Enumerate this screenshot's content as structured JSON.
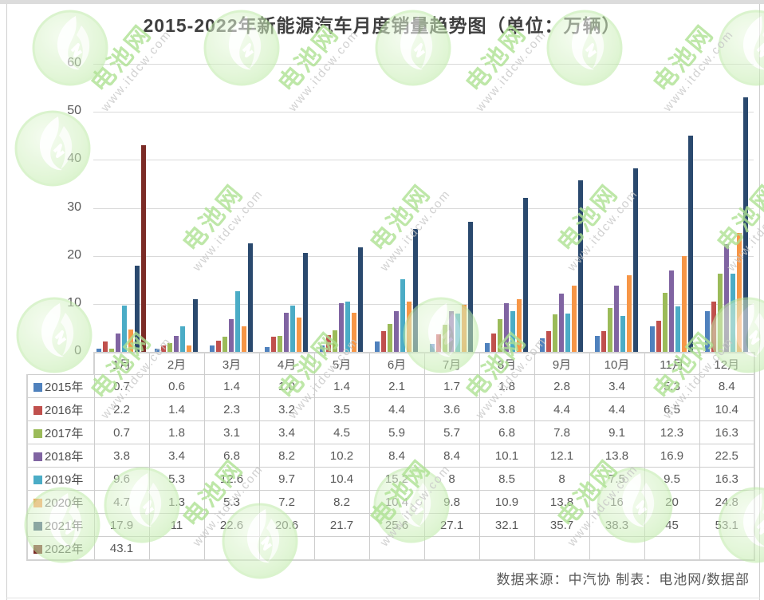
{
  "title": "2015-2022年新能源汽车月度销量趋势图（单位：万辆）",
  "footer_credit": "数据来源：中汽协 制表：电池网/数据部",
  "watermark": {
    "brand": "电池网",
    "url": "www.itdcw.com",
    "logo_icon": "green-swirl-circle-icon"
  },
  "chart_data": {
    "type": "bar",
    "title": "2015-2022年新能源汽车月度销量趋势图（单位：万辆）",
    "unit": "万辆",
    "categories": [
      "1月",
      "2月",
      "3月",
      "4月",
      "5月",
      "6月",
      "7月",
      "8月",
      "9月",
      "10月",
      "11月",
      "12月"
    ],
    "ylim": [
      0,
      60
    ],
    "yticks": [
      0,
      10,
      20,
      30,
      40,
      50,
      60
    ],
    "grid": true,
    "legend_position": "table-left-column",
    "series": [
      {
        "name": "2015年",
        "color": "#4F81BD",
        "values": [
          0.7,
          0.6,
          1.4,
          1.0,
          1.4,
          2.1,
          1.7,
          1.8,
          2.8,
          3.4,
          5.3,
          8.4
        ],
        "table": [
          "0.7",
          "0.6",
          "1.4",
          "1.0",
          "1.4",
          "2.1",
          "1.7",
          "1.8",
          "2.8",
          "3.4",
          "5.3",
          "8.4"
        ]
      },
      {
        "name": "2016年",
        "color": "#C0504D",
        "values": [
          2.2,
          1.4,
          2.3,
          3.2,
          3.5,
          4.4,
          3.6,
          3.8,
          4.4,
          4.4,
          6.5,
          10.4
        ],
        "table": [
          "2.2",
          "1.4",
          "2.3",
          "3.2",
          "3.5",
          "4.4",
          "3.6",
          "3.8",
          "4.4",
          "4.4",
          "6.5",
          "10.4"
        ]
      },
      {
        "name": "2017年",
        "color": "#9BBB59",
        "values": [
          0.7,
          1.8,
          3.1,
          3.4,
          4.5,
          5.9,
          5.7,
          6.8,
          7.8,
          9.1,
          12.3,
          16.3
        ],
        "table": [
          "0.7",
          "1.8",
          "3.1",
          "3.4",
          "4.5",
          "5.9",
          "5.7",
          "6.8",
          "7.8",
          "9.1",
          "12.3",
          "16.3"
        ]
      },
      {
        "name": "2018年",
        "color": "#8064A2",
        "values": [
          3.8,
          3.4,
          6.8,
          8.2,
          10.2,
          8.4,
          8.4,
          10.1,
          12.1,
          13.8,
          16.9,
          22.5
        ],
        "table": [
          "3.8",
          "3.4",
          "6.8",
          "8.2",
          "10.2",
          "8.4",
          "8.4",
          "10.1",
          "12.1",
          "13.8",
          "16.9",
          "22.5"
        ]
      },
      {
        "name": "2019年",
        "color": "#4BACC6",
        "values": [
          9.6,
          5.3,
          12.6,
          9.7,
          10.4,
          15.2,
          8,
          8.5,
          8,
          7.5,
          9.5,
          16.3
        ],
        "table": [
          "9.6",
          "5.3",
          "12.6",
          "9.7",
          "10.4",
          "15.2",
          "8",
          "8.5",
          "8",
          "7.5",
          "9.5",
          "16.3"
        ]
      },
      {
        "name": "2020年",
        "color": "#F79646",
        "values": [
          4.7,
          1.3,
          5.3,
          7.2,
          8.2,
          10.4,
          9.8,
          10.9,
          13.8,
          16,
          20,
          24.8
        ],
        "table": [
          "4.7",
          "1.3",
          "5.3",
          "7.2",
          "8.2",
          "10.4",
          "9.8",
          "10.9",
          "13.8",
          "16",
          "20",
          "24.8"
        ]
      },
      {
        "name": "2021年",
        "color": "#2A496E",
        "values": [
          17.9,
          11,
          22.6,
          20.6,
          21.7,
          25.6,
          27.1,
          32.1,
          35.7,
          38.3,
          45,
          53.1
        ],
        "table": [
          "17.9",
          "11",
          "22.6",
          "20.6",
          "21.7",
          "25.6",
          "27.1",
          "32.1",
          "35.7",
          "38.3",
          "45",
          "53.1"
        ]
      },
      {
        "name": "2022年",
        "color": "#7B2B26",
        "values": [
          43.1,
          null,
          null,
          null,
          null,
          null,
          null,
          null,
          null,
          null,
          null,
          null
        ],
        "table": [
          "43.1",
          "",
          "",
          "",
          "",
          "",
          "",
          "",
          "",
          "",
          "",
          ""
        ]
      }
    ]
  }
}
